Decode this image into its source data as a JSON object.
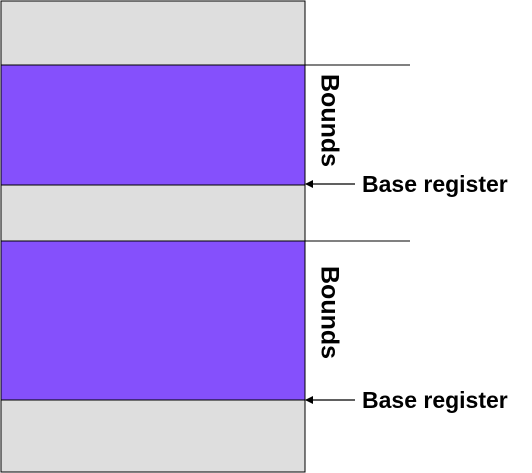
{
  "colors": {
    "free_memory": "#dedede",
    "segment": "#8550fc",
    "outline": "#000000"
  },
  "segments": [
    {
      "bounds_label": "Bounds",
      "base_label": "Base register"
    },
    {
      "bounds_label": "Bounds",
      "base_label": "Base register"
    }
  ]
}
